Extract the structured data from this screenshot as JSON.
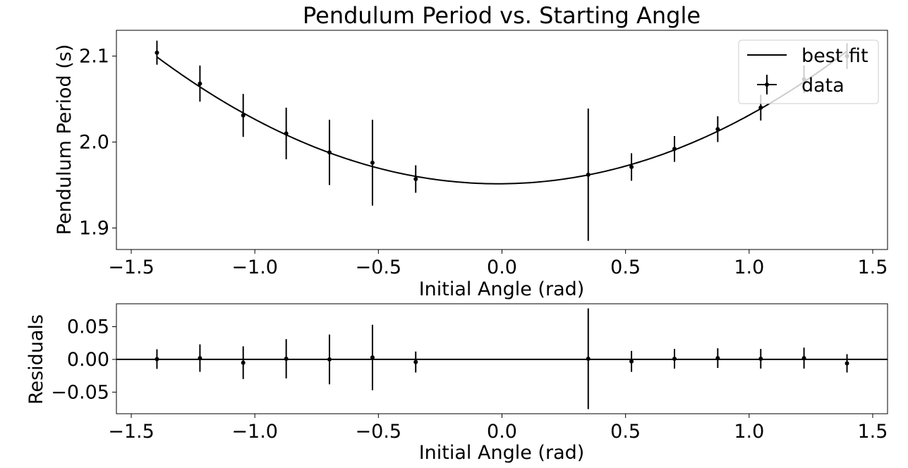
{
  "chart_data": [
    {
      "type": "scatter",
      "title": "Pendulum Period vs. Starting Angle",
      "xlabel": "Initial Angle (rad)",
      "ylabel": "Pendulum Period (s)",
      "xlim": [
        -1.56,
        1.56
      ],
      "ylim": [
        1.875,
        2.13
      ],
      "xticks": [
        -1.5,
        -1.0,
        -0.5,
        0.0,
        0.5,
        1.0,
        1.5
      ],
      "xtick_labels": [
        "−1.5",
        "−1.0",
        "−0.5",
        "0.0",
        "0.5",
        "1.0",
        "1.5"
      ],
      "yticks": [
        1.9,
        2.0,
        2.1
      ],
      "ytick_labels": [
        "1.9",
        "2.0",
        "2.1"
      ],
      "grid": false,
      "legend": {
        "position": "top-right",
        "entries": [
          "best fit",
          "data"
        ]
      },
      "series": [
        {
          "name": "best fit",
          "kind": "line",
          "color": "#000000",
          "model": "quadratic",
          "coefficients": {
            "a": 0.0774,
            "b": 0.0024,
            "c": 1.9515
          }
        },
        {
          "name": "data",
          "kind": "errorbar",
          "color": "#000000",
          "x": [
            -1.396,
            -1.222,
            -1.047,
            -0.873,
            -0.698,
            -0.524,
            -0.349,
            0.349,
            0.524,
            0.698,
            0.873,
            1.047,
            1.222,
            1.396
          ],
          "y": [
            2.104,
            2.068,
            2.031,
            2.01,
            1.988,
            1.976,
            1.957,
            1.962,
            1.971,
            1.992,
            2.015,
            2.04,
            2.073,
            2.1
          ],
          "yerr": [
            0.014,
            0.021,
            0.025,
            0.03,
            0.038,
            0.05,
            0.016,
            0.077,
            0.016,
            0.015,
            0.015,
            0.015,
            0.016,
            0.015
          ]
        }
      ]
    },
    {
      "type": "scatter",
      "title": "",
      "xlabel": "Initial Angle (rad)",
      "ylabel": "Residuals",
      "xlim": [
        -1.56,
        1.56
      ],
      "ylim": [
        -0.083,
        0.085
      ],
      "xticks": [
        -1.5,
        -1.0,
        -0.5,
        0.0,
        0.5,
        1.0,
        1.5
      ],
      "xtick_labels": [
        "−1.5",
        "−1.0",
        "−0.5",
        "0.0",
        "0.5",
        "1.0",
        "1.5"
      ],
      "yticks": [
        0.05,
        0.0,
        -0.05
      ],
      "ytick_labels": [
        "0.05",
        "0.00",
        "−0.05"
      ],
      "grid": false,
      "zero_line": true,
      "series": [
        {
          "kind": "errorbar",
          "color": "#000000",
          "x": [
            -1.396,
            -1.222,
            -1.047,
            -0.873,
            -0.698,
            -0.524,
            -0.349,
            0.349,
            0.524,
            0.698,
            0.873,
            1.047,
            1.222,
            1.396
          ],
          "y": [
            0.0005,
            0.002,
            -0.005,
            0.001,
            0.0,
            0.003,
            -0.004,
            0.001,
            -0.003,
            0.001,
            0.002,
            0.001,
            0.002,
            -0.006
          ],
          "yerr": [
            0.015,
            0.021,
            0.025,
            0.03,
            0.038,
            0.05,
            0.016,
            0.077,
            0.016,
            0.015,
            0.015,
            0.015,
            0.016,
            0.014
          ]
        }
      ]
    }
  ]
}
